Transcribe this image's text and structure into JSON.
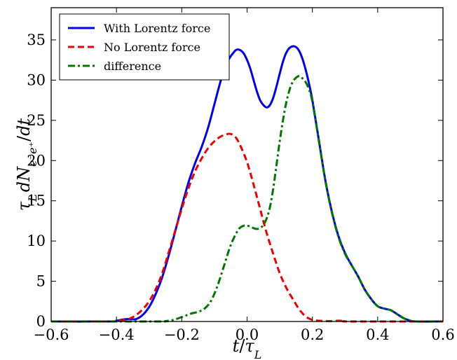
{
  "chart_data": {
    "type": "line",
    "title": "",
    "xlabel": "t/τ_L",
    "ylabel": "τ_L dN_{e⁻e⁺}/dt",
    "xlim": [
      -0.6,
      0.6
    ],
    "ylim": [
      0,
      39
    ],
    "x_ticks": [
      -0.6,
      -0.4,
      -0.2,
      0.0,
      0.2,
      0.4,
      0.6
    ],
    "x_tick_labels": [
      "−0.6",
      "−0.4",
      "−0.2",
      "0.0",
      "0.2",
      "0.4",
      "0.6"
    ],
    "y_ticks": [
      0,
      5,
      10,
      15,
      20,
      25,
      30,
      35
    ],
    "y_tick_labels": [
      "0",
      "5",
      "10",
      "15",
      "20",
      "25",
      "30",
      "35"
    ],
    "grid": false,
    "legend_position": "top-left",
    "series": [
      {
        "name": "With Lorentz force",
        "color": "#0000ee",
        "style": "solid",
        "x": [
          -0.6,
          -0.42,
          -0.4,
          -0.37,
          -0.355,
          -0.34,
          -0.32,
          -0.3,
          -0.28,
          -0.26,
          -0.24,
          -0.22,
          -0.2,
          -0.18,
          -0.16,
          -0.14,
          -0.12,
          -0.1,
          -0.08,
          -0.06,
          -0.04,
          -0.03,
          -0.02,
          -0.01,
          0.0,
          0.01,
          0.02,
          0.03,
          0.04,
          0.05,
          0.06,
          0.07,
          0.08,
          0.09,
          0.1,
          0.11,
          0.12,
          0.13,
          0.14,
          0.15,
          0.16,
          0.17,
          0.18,
          0.19,
          0.2,
          0.22,
          0.24,
          0.26,
          0.28,
          0.3,
          0.32,
          0.34,
          0.36,
          0.38,
          0.4,
          0.42,
          0.44,
          0.46,
          0.48,
          0.5,
          0.52,
          0.6
        ],
        "values": [
          0,
          0,
          0.1,
          0.3,
          0.3,
          0.3,
          0.8,
          1.8,
          3.4,
          5.5,
          8.2,
          11.2,
          14.3,
          17.2,
          19.6,
          21.6,
          24.0,
          27.0,
          30.0,
          32.3,
          33.5,
          33.8,
          33.7,
          33.3,
          32.5,
          31.4,
          30.0,
          28.6,
          27.5,
          26.9,
          26.6,
          26.9,
          27.8,
          29.2,
          30.8,
          32.3,
          33.4,
          34.0,
          34.2,
          34.1,
          33.6,
          32.6,
          31.2,
          29.5,
          27.5,
          22.5,
          17.5,
          13.6,
          10.6,
          8.5,
          7.0,
          5.6,
          4.0,
          2.8,
          1.9,
          1.6,
          1.4,
          0.9,
          0.4,
          0.1,
          0,
          0
        ]
      },
      {
        "name": "No Lorentz force",
        "color": "#ee0000",
        "style": "dashed",
        "x": [
          -0.6,
          -0.42,
          -0.4,
          -0.38,
          -0.36,
          -0.34,
          -0.32,
          -0.3,
          -0.28,
          -0.26,
          -0.24,
          -0.22,
          -0.2,
          -0.18,
          -0.16,
          -0.14,
          -0.12,
          -0.1,
          -0.08,
          -0.06,
          -0.05,
          -0.04,
          -0.03,
          -0.02,
          0.0,
          0.02,
          0.04,
          0.06,
          0.08,
          0.1,
          0.12,
          0.14,
          0.16,
          0.18,
          0.2,
          0.22,
          0.24,
          0.26,
          0.28,
          0.3,
          0.32,
          0.6
        ],
        "values": [
          0,
          0,
          0.05,
          0.15,
          0.35,
          0.8,
          1.5,
          2.5,
          4.0,
          6.0,
          8.6,
          11.3,
          14.0,
          16.5,
          18.6,
          20.2,
          21.5,
          22.4,
          23.0,
          23.3,
          23.3,
          23.1,
          22.6,
          21.8,
          19.8,
          17.0,
          14.0,
          11.0,
          8.4,
          6.0,
          4.2,
          2.8,
          1.5,
          0.6,
          0.2,
          0.1,
          0.05,
          0.05,
          0.1,
          0.05,
          0,
          0
        ]
      },
      {
        "name": "difference",
        "color": "#007700",
        "style": "dash-dot",
        "x": [
          -0.6,
          -0.27,
          -0.25,
          -0.23,
          -0.21,
          -0.19,
          -0.17,
          -0.15,
          -0.13,
          -0.11,
          -0.09,
          -0.07,
          -0.05,
          -0.03,
          -0.02,
          -0.01,
          0.0,
          0.01,
          0.02,
          0.03,
          0.04,
          0.05,
          0.06,
          0.07,
          0.08,
          0.09,
          0.1,
          0.11,
          0.12,
          0.13,
          0.14,
          0.15,
          0.16,
          0.17,
          0.18,
          0.19,
          0.2,
          0.22,
          0.24,
          0.26,
          0.28,
          0.3,
          0.32,
          0.34,
          0.36,
          0.38,
          0.4,
          0.42,
          0.44,
          0.46,
          0.48,
          0.5,
          0.52,
          0.6
        ],
        "values": [
          0,
          0,
          0.05,
          0.15,
          0.4,
          0.7,
          1.0,
          1.2,
          1.6,
          2.6,
          4.5,
          7.0,
          9.5,
          11.2,
          11.7,
          11.9,
          11.9,
          11.8,
          11.6,
          11.5,
          11.6,
          12.0,
          12.8,
          14.2,
          16.5,
          19.4,
          22.4,
          25.0,
          27.2,
          28.8,
          29.8,
          30.3,
          30.5,
          30.2,
          29.7,
          28.8,
          27.3,
          22.4,
          17.4,
          13.5,
          10.5,
          8.4,
          7.0,
          5.6,
          4.0,
          2.8,
          1.9,
          1.6,
          1.4,
          0.9,
          0.4,
          0.1,
          0,
          0
        ]
      }
    ]
  }
}
